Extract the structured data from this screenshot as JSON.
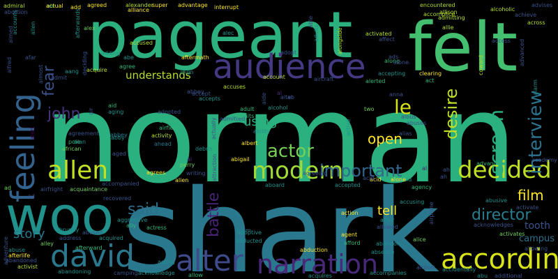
{
  "words": [
    {
      "text": "norman",
      "color": "#2bb07f",
      "rot": false
    },
    {
      "text": "shark",
      "color": "#2a788e",
      "rot": false
    },
    {
      "text": "pageant",
      "color": "#2cb17e",
      "rot": false
    },
    {
      "text": "felt",
      "color": "#44bf70",
      "rot": false
    },
    {
      "text": "woo",
      "color": "#21918c",
      "rot": false
    },
    {
      "text": "audience",
      "color": "#443983",
      "rot": false
    },
    {
      "text": "feeling",
      "color": "#33638d",
      "rot": true
    },
    {
      "text": "allen",
      "color": "#c2df23",
      "rot": false
    },
    {
      "text": "decided",
      "color": "#bddf26",
      "rot": false
    },
    {
      "text": "david",
      "color": "#2a788e",
      "rot": false
    },
    {
      "text": "according",
      "color": "#d8e219",
      "rot": false
    },
    {
      "text": "alter",
      "color": "#3e4a89",
      "rot": false
    },
    {
      "text": "narration",
      "color": "#482878",
      "rot": false
    },
    {
      "text": "modern",
      "color": "#a2da37",
      "rot": false
    },
    {
      "text": "important",
      "color": "#31688e",
      "rot": false
    },
    {
      "text": "interview",
      "color": "#2c728e",
      "rot": true
    },
    {
      "text": "screen",
      "color": "#2ab07f",
      "rot": true
    },
    {
      "text": "director",
      "color": "#287d8e",
      "rot": false
    },
    {
      "text": "desire",
      "color": "#bddf26",
      "rot": true
    },
    {
      "text": "actor",
      "color": "#75d054",
      "rot": false
    },
    {
      "text": "battle",
      "color": "#482475",
      "rot": true
    },
    {
      "text": "john",
      "color": "#46337e",
      "rot": false
    },
    {
      "text": "fear",
      "color": "#3b528b",
      "rot": true
    },
    {
      "text": "le",
      "color": "#d8e219",
      "rot": false
    },
    {
      "text": "open",
      "color": "#fde725",
      "rot": false
    },
    {
      "text": "said",
      "color": "#2d708e",
      "rot": false
    },
    {
      "text": "tell",
      "color": "#fde725",
      "rot": false
    },
    {
      "text": "story",
      "color": "#2a788e",
      "rot": false
    },
    {
      "text": "film",
      "color": "#fde725",
      "rot": false
    },
    {
      "text": "using",
      "color": "#2ab07f",
      "rot": false
    },
    {
      "text": "understands",
      "color": "#b5de2b",
      "rot": false
    },
    {
      "text": "tooth",
      "color": "#3b528b",
      "rot": false
    },
    {
      "text": "campus",
      "color": "#2c728e",
      "rot": false
    },
    {
      "text": "afraid",
      "color": "#1f9e89",
      "rot": false
    },
    {
      "text": "al",
      "color": "#472d7b",
      "rot": false
    },
    {
      "text": "al",
      "color": "#472d7b",
      "rot": false
    },
    {
      "text": "al",
      "color": "#481a6c",
      "rot": false
    },
    {
      "text": "alec",
      "color": "#1f9e89",
      "rot": false
    },
    {
      "text": "alien",
      "color": "#fde725",
      "rot": false
    },
    {
      "text": "alert",
      "color": "#440154",
      "rot": true
    },
    {
      "text": "abbey",
      "color": "#2a788e",
      "rot": false
    },
    {
      "text": "airfield",
      "color": "#35b779",
      "rot": false
    },
    {
      "text": "african",
      "color": "#6ece58",
      "rot": false
    },
    {
      "text": "ahead",
      "color": "#2a788e",
      "rot": false
    },
    {
      "text": "admit",
      "color": "#3b528b",
      "rot": false
    },
    {
      "text": "adult",
      "color": "#35b779",
      "rot": false
    },
    {
      "text": "albert",
      "color": "#fde725",
      "rot": false
    },
    {
      "text": "alone",
      "color": "#fde725",
      "rot": false
    },
    {
      "text": "agency",
      "color": "#35b779",
      "rot": false
    },
    {
      "text": "aged",
      "color": "#3b528b",
      "rot": false
    },
    {
      "text": "ally",
      "color": "#35b779",
      "rot": false
    },
    {
      "text": "actress",
      "color": "#35b779",
      "rot": false
    },
    {
      "text": "adam",
      "color": "#26828e",
      "rot": false
    },
    {
      "text": "agent",
      "color": "#fde725",
      "rot": false
    },
    {
      "text": "airport",
      "color": "#3b528b",
      "rot": false
    },
    {
      "text": "abu",
      "color": "#21918c",
      "rot": false
    },
    {
      "text": "additional",
      "color": "#3b528b",
      "rot": false
    },
    {
      "text": "abandon",
      "color": "#21918c",
      "rot": false
    },
    {
      "text": "action",
      "color": "#fde725",
      "rot": false
    },
    {
      "text": "accidentally",
      "color": "#21918c",
      "rot": false
    },
    {
      "text": "abduction",
      "color": "#fde725",
      "rot": false
    },
    {
      "text": "absence",
      "color": "#21918c",
      "rot": false
    },
    {
      "text": "accompanies",
      "color": "#21918c",
      "rot": false
    },
    {
      "text": "acquires",
      "color": "#21918c",
      "rot": false
    },
    {
      "text": "acting",
      "color": "#21918c",
      "rot": false
    },
    {
      "text": "allow",
      "color": "#35b779",
      "rot": false
    },
    {
      "text": "acknowledge",
      "color": "#21918c",
      "rot": false
    },
    {
      "text": "camping",
      "color": "#3b528b",
      "rot": false
    },
    {
      "text": "abandoning",
      "color": "#21918c",
      "rot": false
    },
    {
      "text": "activist",
      "color": "#b5de2b",
      "rot": false
    },
    {
      "text": "abandoned",
      "color": "#3b528b",
      "rot": false
    },
    {
      "text": "abuse",
      "color": "#21918c",
      "rot": false
    },
    {
      "text": "afterlife",
      "color": "#fde725",
      "rot": false
    },
    {
      "text": "adventure",
      "color": "#3b528b",
      "rot": true
    },
    {
      "text": "ad",
      "color": "#6ece58",
      "rot": false
    },
    {
      "text": "airfright",
      "color": "#3b528b",
      "rot": false
    },
    {
      "text": "alley",
      "color": "#6ece58",
      "rot": false
    },
    {
      "text": "abruptly",
      "color": "#21918c",
      "rot": false
    },
    {
      "text": "acquaintance",
      "color": "#6ece58",
      "rot": false
    },
    {
      "text": "accompanied",
      "color": "#3b528b",
      "rot": false
    },
    {
      "text": "recovered",
      "color": "#3b528b",
      "rot": false
    },
    {
      "text": "aggressive",
      "color": "#21918c",
      "rot": false
    },
    {
      "text": "abused",
      "color": "#3b528b",
      "rot": false
    },
    {
      "text": "address",
      "color": "#3b528b",
      "rot": false
    },
    {
      "text": "acquired",
      "color": "#21918c",
      "rot": false
    },
    {
      "text": "afterward",
      "color": "#35b779",
      "rot": false
    },
    {
      "text": "aboard",
      "color": "#21918c",
      "rot": false
    },
    {
      "text": "accepted",
      "color": "#21918c",
      "rot": false
    },
    {
      "text": "abducted",
      "color": "#21918c",
      "rot": false
    },
    {
      "text": "adoptive",
      "color": "#21918c",
      "rot": false
    },
    {
      "text": "afford",
      "color": "#35b779",
      "rot": false
    },
    {
      "text": "affair",
      "color": "#21918c",
      "rot": false
    },
    {
      "text": "allowed",
      "color": "#3b528b",
      "rot": false
    },
    {
      "text": "accusing",
      "color": "#21918c",
      "rot": false
    },
    {
      "text": "alice",
      "color": "#6ece58",
      "rot": false
    },
    {
      "text": "abusive",
      "color": "#21918c",
      "rot": false
    },
    {
      "text": "activate",
      "color": "#3b528b",
      "rot": false
    },
    {
      "text": "acknowledges",
      "color": "#3b528b",
      "rot": false
    },
    {
      "text": "activates",
      "color": "#6ece58",
      "rot": false
    },
    {
      "text": "allowing",
      "color": "#3b528b",
      "rot": false
    },
    {
      "text": "advance",
      "color": "#35b779",
      "rot": false
    },
    {
      "text": "academy",
      "color": "#3b528b",
      "rot": false
    },
    {
      "text": "acid",
      "color": "#fde725",
      "rot": false
    },
    {
      "text": "agreeing",
      "color": "#3b528b",
      "rot": false
    },
    {
      "text": "agrees",
      "color": "#fde725",
      "rot": false
    },
    {
      "text": "writing",
      "color": "#3b528b",
      "rot": false
    },
    {
      "text": "perry",
      "color": "#6ece58",
      "rot": false
    },
    {
      "text": "debris",
      "color": "#21918c",
      "rot": false
    },
    {
      "text": "attraction",
      "color": "#3b528b",
      "rot": true
    },
    {
      "text": "abigail",
      "color": "#fde725",
      "rot": false
    },
    {
      "text": "actually",
      "color": "#3b528b",
      "rot": true
    },
    {
      "text": "ability",
      "color": "#21918c",
      "rot": false
    },
    {
      "text": "adopted",
      "color": "#3b528b",
      "rot": false
    },
    {
      "text": "advice",
      "color": "#35b779",
      "rot": false
    },
    {
      "text": "activity",
      "color": "#b5de2b",
      "rot": false
    },
    {
      "text": "admitted",
      "color": "#3b528b",
      "rot": false
    },
    {
      "text": "agreement",
      "color": "#3b528b",
      "rot": false
    },
    {
      "text": "pole",
      "color": "#35b779",
      "rot": false
    },
    {
      "text": "alan",
      "color": "#21918c",
      "rot": false
    },
    {
      "text": "air",
      "color": "#3b528b",
      "rot": true
    },
    {
      "text": "aid",
      "color": "#35b779",
      "rot": false
    },
    {
      "text": "aging",
      "color": "#21918c",
      "rot": false
    },
    {
      "text": "abbey",
      "color": "#3b528b",
      "rot": false
    },
    {
      "text": "accept",
      "color": "#3b528b",
      "rot": false
    },
    {
      "text": "accepts",
      "color": "#21918c",
      "rot": false
    },
    {
      "text": "accuses",
      "color": "#b5de2b",
      "rot": false
    },
    {
      "text": "admits",
      "color": "#35b779",
      "rot": false
    },
    {
      "text": "alcohol",
      "color": "#21918c",
      "rot": false
    },
    {
      "text": "aircraft",
      "color": "#3b528b",
      "rot": false
    },
    {
      "text": "account",
      "color": "#b5de2b",
      "rot": false
    },
    {
      "text": "alerted",
      "color": "#35b779",
      "rot": false
    },
    {
      "text": "accepting",
      "color": "#21918c",
      "rot": false
    },
    {
      "text": "clearing",
      "color": "#fde725",
      "rot": false
    },
    {
      "text": "act",
      "color": "#35b779",
      "rot": false
    },
    {
      "text": "along",
      "color": "#35b779",
      "rot": false
    },
    {
      "text": "active",
      "color": "#21918c",
      "rot": true
    },
    {
      "text": "ab",
      "color": "#3b528b",
      "rot": false
    },
    {
      "text": "two",
      "color": "#6ece58",
      "rot": false
    },
    {
      "text": "abby",
      "color": "#21918c",
      "rot": false
    },
    {
      "text": "aftermath",
      "color": "#fde725",
      "rot": false
    },
    {
      "text": "align",
      "color": "#21918c",
      "rot": false
    },
    {
      "text": "accused",
      "color": "#b5de2b",
      "rot": false
    },
    {
      "text": "abe",
      "color": "#21918c",
      "rot": false
    },
    {
      "text": "agree",
      "color": "#35b779",
      "rot": false
    },
    {
      "text": "adding",
      "color": "#21918c",
      "rot": false
    },
    {
      "text": "acquire",
      "color": "#b5de2b",
      "rot": false
    },
    {
      "text": "aang",
      "color": "#21918c",
      "rot": false
    },
    {
      "text": "ale",
      "color": "#21918c",
      "rot": false
    },
    {
      "text": "interrupt",
      "color": "#fde725",
      "rot": false
    },
    {
      "text": "super",
      "color": "#fde725",
      "rot": false
    },
    {
      "text": "advantage",
      "color": "#fde725",
      "rot": false
    },
    {
      "text": "agreed",
      "color": "#fde725",
      "rot": false
    },
    {
      "text": "alexander",
      "color": "#b5de2b",
      "rot": false
    },
    {
      "text": "alliance",
      "color": "#fde725",
      "rot": false
    },
    {
      "text": "add",
      "color": "#fde725",
      "rot": false
    },
    {
      "text": "actual",
      "color": "#fde725",
      "rot": false
    },
    {
      "text": "afterwards",
      "color": "#21918c",
      "rot": true
    },
    {
      "text": "alex",
      "color": "#6ece58",
      "rot": false
    },
    {
      "text": "able",
      "color": "#3b528b",
      "rot": true
    },
    {
      "text": "adults",
      "color": "#21918c",
      "rot": true
    },
    {
      "text": "alongside",
      "color": "#b5de2b",
      "rot": true
    },
    {
      "text": "activated",
      "color": "#b5de2b",
      "rot": false
    },
    {
      "text": "affect",
      "color": "#3b528b",
      "rot": false
    },
    {
      "text": "encountered",
      "color": "#b5de2b",
      "rot": false
    },
    {
      "text": "accomplice",
      "color": "#b5de2b",
      "rot": false
    },
    {
      "text": "allison",
      "color": "#b5de2b",
      "rot": false
    },
    {
      "text": "admitting",
      "color": "#b5de2b",
      "rot": false
    },
    {
      "text": "allie",
      "color": "#b5de2b",
      "rot": false
    },
    {
      "text": "alcoholic",
      "color": "#b5de2b",
      "rot": false
    },
    {
      "text": "achieve",
      "color": "#3b528b",
      "rot": false
    },
    {
      "text": "across",
      "color": "#b5de2b",
      "rot": false
    },
    {
      "text": "advises",
      "color": "#3b528b",
      "rot": false
    },
    {
      "text": "access",
      "color": "#3b528b",
      "rot": false
    },
    {
      "text": "advanced",
      "color": "#3b528b",
      "rot": true
    },
    {
      "text": "coward",
      "color": "#b5de2b",
      "rot": true
    },
    {
      "text": "alarm",
      "color": "#21918c",
      "rot": true
    },
    {
      "text": "admiral",
      "color": "#b5de2b",
      "rot": false
    },
    {
      "text": "abortion",
      "color": "#3b528b",
      "rot": false
    },
    {
      "text": "accounts",
      "color": "#21918c",
      "rot": true
    },
    {
      "text": "allen",
      "color": "#21918c",
      "rot": true
    },
    {
      "text": "almost",
      "color": "#3b528b",
      "rot": true
    },
    {
      "text": "aimed",
      "color": "#3b528b",
      "rot": true
    },
    {
      "text": "deciding",
      "color": "#3b528b",
      "rot": true
    },
    {
      "text": "alfred",
      "color": "#3b528b",
      "rot": true
    },
    {
      "text": "adopt",
      "color": "#3b528b",
      "rot": false
    },
    {
      "text": "alter",
      "color": "#3b528b",
      "rot": false
    },
    {
      "text": "afar",
      "color": "#3b528b",
      "rot": false
    },
    {
      "text": "airplane",
      "color": "#3b528b",
      "rot": true
    },
    {
      "text": "ah",
      "color": "#3b528b",
      "rot": false
    },
    {
      "text": "ads",
      "color": "#3b528b",
      "rot": false
    },
    {
      "text": "alone",
      "color": "#3b528b",
      "rot": false
    },
    {
      "text": "acid",
      "color": "#3b528b",
      "rot": false
    },
    {
      "text": "aide",
      "color": "#3b528b",
      "rot": true
    },
    {
      "text": "albus",
      "color": "#3b528b",
      "rot": false
    },
    {
      "text": "alias",
      "color": "#3b528b",
      "rot": false
    },
    {
      "text": "abuses",
      "color": "#3b528b",
      "rot": false
    },
    {
      "text": "anna",
      "color": "#3b528b",
      "rot": false
    },
    {
      "text": "ad",
      "color": "#3b528b",
      "rot": false
    },
    {
      "text": "ah",
      "color": "#3b528b",
      "rot": false
    }
  ]
}
